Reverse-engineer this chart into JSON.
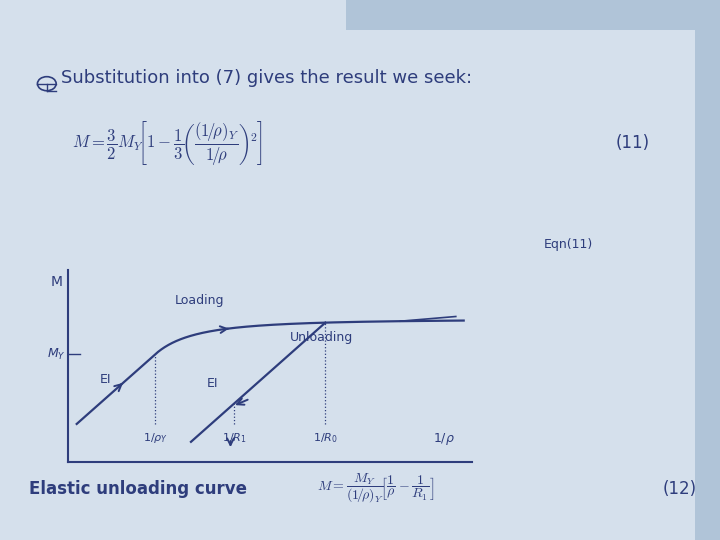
{
  "bg_color": "#d5e0ec",
  "bar_color": "#b0c4d8",
  "text_color": "#2e3d7c",
  "curve_color": "#2e3d7c",
  "title_text": "Substitution into (7) gives the result we seek:",
  "title_fontsize": 13,
  "eq11_label": "(11)",
  "eq12_label": "(12)",
  "eqn11_label": "Eqn(11)",
  "loading_label": "Loading",
  "unloading_label": "Unloading",
  "EI_label1": "EI",
  "EI_label2": "EI",
  "M_label": "M",
  "MY_label": "M_Y",
  "elastic_label": "Elastic unloading curve",
  "formula11": "$M = \\dfrac{3}{2}M_Y\\!\\left[1 - \\dfrac{1}{3}\\!\\left(\\dfrac{(1\\!/\\rho)_Y}{1\\!/\\rho}\\right)^{\\!2}\\right]$",
  "formula12": "$M = \\dfrac{M_Y}{(1\\!/\\rho)_Y}\\!\\left[\\dfrac{1}{\\rho} - \\dfrac{1}{R_1}\\right]$"
}
